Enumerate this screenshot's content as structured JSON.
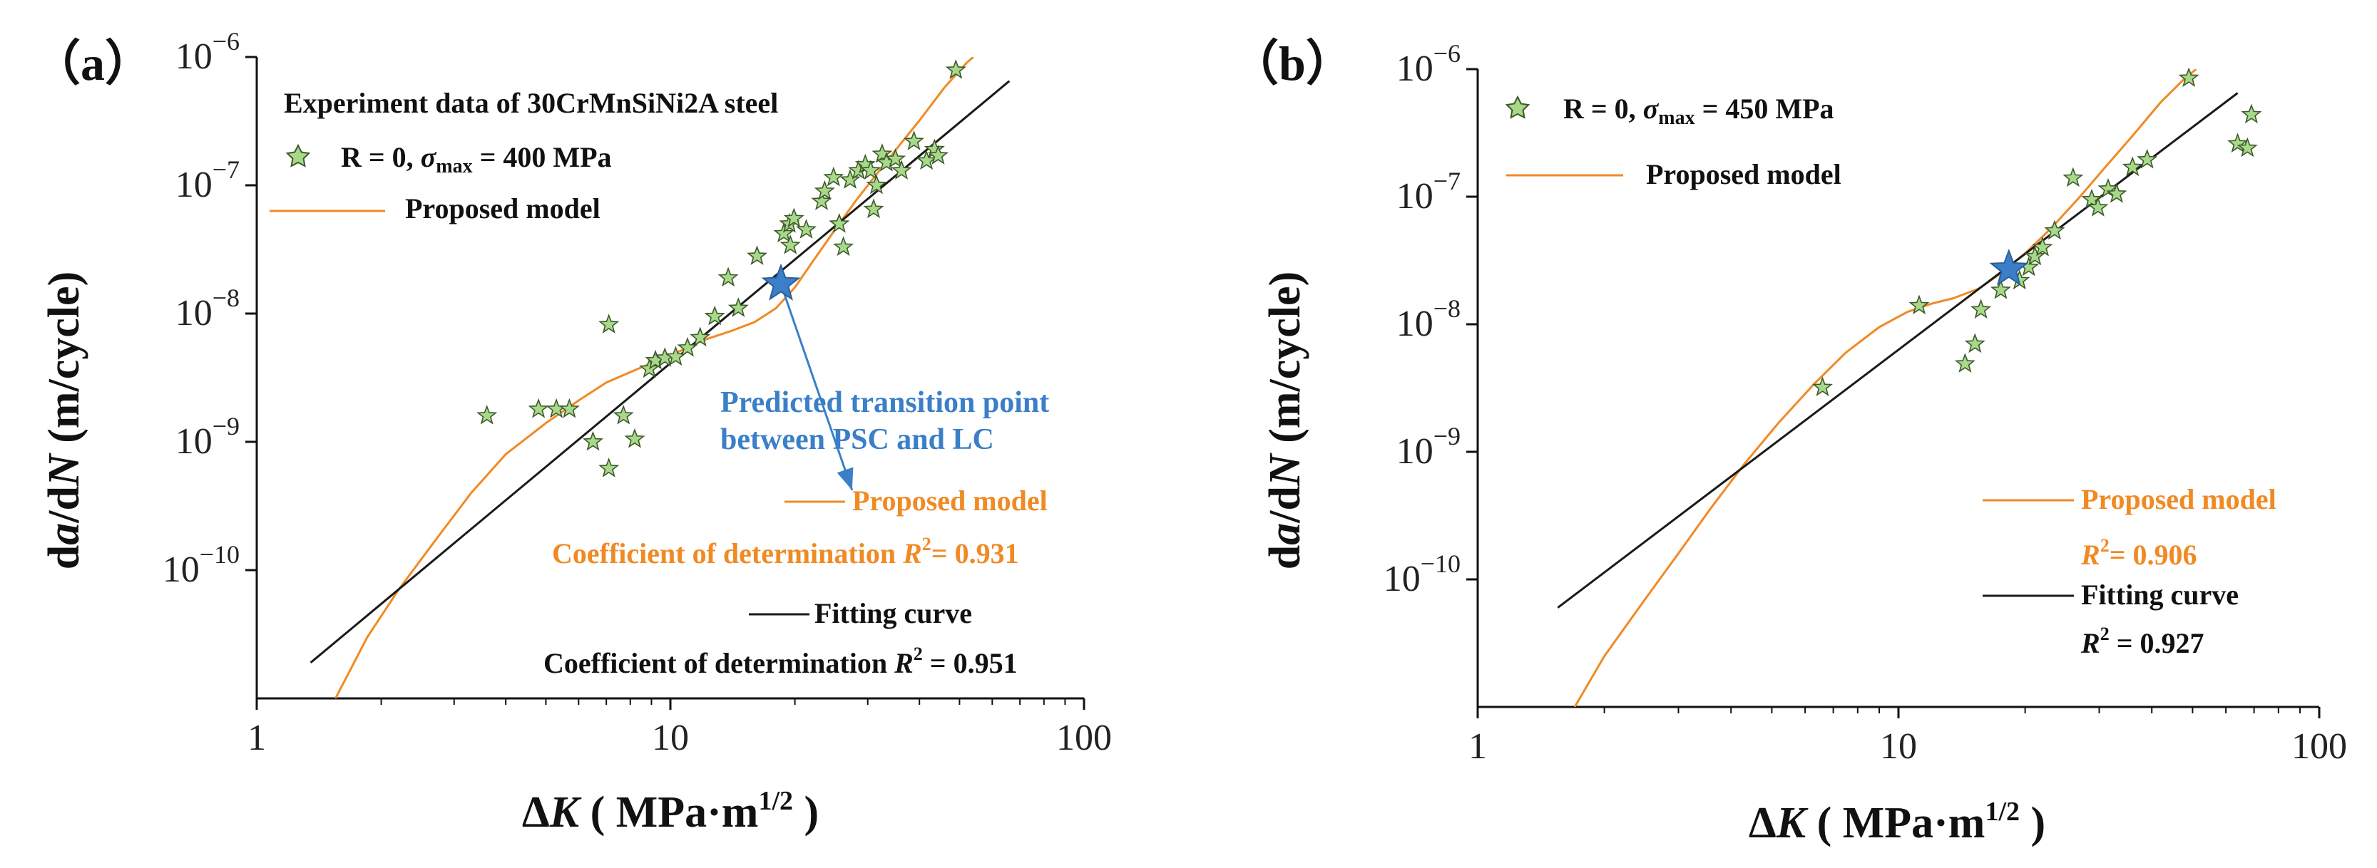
{
  "chart_data": [
    {
      "id": "a",
      "type": "scatter",
      "panel_label": "（a）",
      "xlabel": "ΔK ( MPa·m1/2 )",
      "xlabel_parts": {
        "delta": "Δ",
        "var": "K",
        "units": " ( MPa·m",
        "sup": "1/2",
        "close": " )"
      },
      "ylabel": "da/dN (m/cycle)",
      "ylabel_parts": {
        "d1": "d",
        "a": "a",
        "slash": "/d",
        "n": "N",
        "units": " (m/cycle)"
      },
      "xscale": "log",
      "yscale": "log",
      "xlim": [
        1,
        100
      ],
      "ylim": [
        1e-11,
        1e-06
      ],
      "xticks": [
        1,
        10,
        100
      ],
      "xtick_labels": [
        "1",
        "10",
        "100"
      ],
      "yticks": [
        1e-10,
        1e-09,
        1e-08,
        1e-07,
        1e-06
      ],
      "ytick_labels": [
        {
          "base": "10",
          "exp": "−10"
        },
        {
          "base": "10",
          "exp": "−9"
        },
        {
          "base": "10",
          "exp": "−8"
        },
        {
          "base": "10",
          "exp": "−7"
        },
        {
          "base": "10",
          "exp": "−6"
        }
      ],
      "title_annotation": "Experiment data of 30CrMnSiNi2A steel",
      "legend": [
        {
          "kind": "marker",
          "label_parts": {
            "pre": "R = 0, ",
            "sigma": "σ",
            "sub": "max",
            "post": " = 400 MPa"
          }
        },
        {
          "kind": "line",
          "color": "#f08a24",
          "label": "Proposed model"
        }
      ],
      "series": [
        {
          "name": "Experiment data",
          "kind": "points",
          "marker": "star",
          "color": "#a8d88a",
          "points": [
            [
              3.6,
              1.6e-09
            ],
            [
              4.8,
              1.8e-09
            ],
            [
              5.3,
              1.8e-09
            ],
            [
              5.7,
              1.8e-09
            ],
            [
              6.5,
              1e-09
            ],
            [
              7.1,
              8.2e-09
            ],
            [
              7.1,
              6.2e-10
            ],
            [
              7.7,
              1.6e-09
            ],
            [
              8.2,
              1.05e-09
            ],
            [
              8.9,
              3.7e-09
            ],
            [
              9.2,
              4.3e-09
            ],
            [
              9.7,
              4.5e-09
            ],
            [
              10.3,
              4.6e-09
            ],
            [
              11.0,
              5.4e-09
            ],
            [
              11.8,
              6.5e-09
            ],
            [
              12.8,
              9.5e-09
            ],
            [
              13.8,
              1.9e-08
            ],
            [
              14.6,
              1.1e-08
            ],
            [
              16.2,
              2.8e-08
            ],
            [
              18.8,
              4.2e-08
            ],
            [
              19.4,
              5e-08
            ],
            [
              19.9,
              5.5e-08
            ],
            [
              19.5,
              3.4e-08
            ],
            [
              21.3,
              4.5e-08
            ],
            [
              23.2,
              7.5e-08
            ],
            [
              23.6,
              9e-08
            ],
            [
              24.8,
              1.15e-07
            ],
            [
              25.6,
              5e-08
            ],
            [
              26.2,
              3.3e-08
            ],
            [
              27.2,
              1.1e-07
            ],
            [
              28.5,
              1.3e-07
            ],
            [
              29.6,
              1.45e-07
            ],
            [
              30.5,
              1.3e-07
            ],
            [
              31.5,
              1e-07
            ],
            [
              31.0,
              6.5e-08
            ],
            [
              32.5,
              1.75e-07
            ],
            [
              33.3,
              1.5e-07
            ],
            [
              35.0,
              1.6e-07
            ],
            [
              36.2,
              1.3e-07
            ],
            [
              38.8,
              2.2e-07
            ],
            [
              41.6,
              1.55e-07
            ],
            [
              43.5,
              1.9e-07
            ],
            [
              44.4,
              1.7e-07
            ],
            [
              49.0,
              7.9e-07
            ]
          ]
        },
        {
          "name": "Predicted transition point",
          "kind": "points",
          "marker": "big-star",
          "color": "#3a7fc8",
          "points": [
            [
              18.5,
              1.7e-08
            ]
          ]
        },
        {
          "name": "Proposed model",
          "kind": "line",
          "color": "#f08a24",
          "points": [
            [
              1.55,
              1e-11
            ],
            [
              1.85,
              3e-11
            ],
            [
              2.2,
              7e-11
            ],
            [
              2.7,
              1.7e-10
            ],
            [
              3.3,
              4e-10
            ],
            [
              4.0,
              8e-10
            ],
            [
              5.0,
              1.4e-09
            ],
            [
              6.0,
              2.1e-09
            ],
            [
              7.0,
              2.9e-09
            ],
            [
              8.5,
              3.8e-09
            ],
            [
              10.0,
              4.7e-09
            ],
            [
              12.0,
              6.2e-09
            ],
            [
              14.0,
              7.3e-09
            ],
            [
              16.0,
              8.6e-09
            ],
            [
              18.0,
              1.1e-08
            ],
            [
              20.0,
              1.6e-08
            ],
            [
              22.0,
              2.5e-08
            ],
            [
              25.0,
              4.5e-08
            ],
            [
              28.0,
              7.5e-08
            ],
            [
              32.0,
              1.3e-07
            ],
            [
              36.0,
              2.1e-07
            ],
            [
              40.0,
              3.2e-07
            ],
            [
              46.0,
              5.8e-07
            ],
            [
              52.0,
              9e-07
            ],
            [
              54.0,
              1e-06
            ]
          ]
        },
        {
          "name": "Fitting curve",
          "kind": "line",
          "color": "#1a1a1a",
          "points": [
            [
              1.35,
              1.9e-11
            ],
            [
              66.0,
              6.5e-07
            ]
          ]
        }
      ],
      "annotations": {
        "transition_text": [
          "Predicted transition point",
          "between PSC and LC"
        ],
        "arrow_from": [
          18.5,
          1.7e-08
        ],
        "arrow_to": [
          27.5,
          4.2e-10
        ],
        "proposed_label": "Proposed model",
        "proposed_r2_prefix": "Coefficient of determination ",
        "proposed_r2_value": "= 0.931",
        "fitting_label": "Fitting curve",
        "fitting_r2_prefix": "Coefficient of determination ",
        "fitting_r2_value": " = 0.951",
        "r2_symbol": "R",
        "r2_sup": "2"
      }
    },
    {
      "id": "b",
      "type": "scatter",
      "panel_label": "（b）",
      "xlabel": "ΔK ( MPa·m1/2 )",
      "xlabel_parts": {
        "delta": "Δ",
        "var": "K",
        "units": " ( MPa·m",
        "sup": "1/2",
        "close": " )"
      },
      "ylabel": "da/dN (m/cycle)",
      "ylabel_parts": {
        "d1": "d",
        "a": "a",
        "slash": "/d",
        "n": "N",
        "units": " (m/cycle)"
      },
      "xscale": "log",
      "yscale": "log",
      "xlim": [
        1,
        100
      ],
      "ylim": [
        1e-11,
        1e-06
      ],
      "xticks": [
        1,
        10,
        100
      ],
      "xtick_labels": [
        "1",
        "10",
        "100"
      ],
      "yticks": [
        1e-10,
        1e-09,
        1e-08,
        1e-07,
        1e-06
      ],
      "ytick_labels": [
        {
          "base": "10",
          "exp": "−10"
        },
        {
          "base": "10",
          "exp": "−9"
        },
        {
          "base": "10",
          "exp": "−8"
        },
        {
          "base": "10",
          "exp": "−7"
        },
        {
          "base": "10",
          "exp": "−6"
        }
      ],
      "legend": [
        {
          "kind": "marker",
          "label_parts": {
            "pre": "R = 0, ",
            "sigma": "σ",
            "sub": "max",
            "post": " = 450 MPa"
          }
        },
        {
          "kind": "line",
          "color": "#f08a24",
          "label": "Proposed model"
        }
      ],
      "series": [
        {
          "name": "Experiment data",
          "kind": "points",
          "marker": "star",
          "color": "#a8d88a",
          "points": [
            [
              6.6,
              3.2e-09
            ],
            [
              11.2,
              1.4e-08
            ],
            [
              14.4,
              4.9e-09
            ],
            [
              15.2,
              7e-09
            ],
            [
              15.7,
              1.3e-08
            ],
            [
              17.5,
              1.85e-08
            ],
            [
              19.4,
              2.2e-08
            ],
            [
              20.4,
              2.8e-08
            ],
            [
              21.1,
              3.4e-08
            ],
            [
              22.0,
              4e-08
            ],
            [
              23.5,
              5.4e-08
            ],
            [
              26.0,
              1.4e-07
            ],
            [
              28.8,
              9.5e-08
            ],
            [
              29.8,
              8.2e-08
            ],
            [
              31.5,
              1.15e-07
            ],
            [
              33.0,
              1.05e-07
            ],
            [
              36.0,
              1.7e-07
            ],
            [
              39.0,
              1.95e-07
            ],
            [
              49.0,
              8.5e-07
            ],
            [
              64.0,
              2.6e-07
            ],
            [
              67.5,
              2.4e-07
            ],
            [
              69.0,
              4.4e-07
            ]
          ]
        },
        {
          "name": "Predicted transition point",
          "kind": "points",
          "marker": "big-star",
          "color": "#3a7fc8",
          "points": [
            [
              18.3,
              2.7e-08
            ]
          ]
        },
        {
          "name": "Proposed model",
          "kind": "line",
          "color": "#f08a24",
          "points": [
            [
              1.7,
              1e-11
            ],
            [
              2.0,
              2.5e-11
            ],
            [
              2.5,
              7e-11
            ],
            [
              3.0,
              1.6e-10
            ],
            [
              3.6,
              3.7e-10
            ],
            [
              4.3,
              8e-10
            ],
            [
              5.2,
              1.7e-09
            ],
            [
              6.3,
              3.4e-09
            ],
            [
              7.5,
              6e-09
            ],
            [
              9.0,
              9.5e-09
            ],
            [
              10.5,
              1.25e-08
            ],
            [
              12.0,
              1.45e-08
            ],
            [
              13.5,
              1.6e-08
            ],
            [
              15.5,
              1.9e-08
            ],
            [
              17.5,
              2.5e-08
            ],
            [
              20.0,
              3.6e-08
            ],
            [
              23.0,
              5.6e-08
            ],
            [
              27.0,
              1e-07
            ],
            [
              31.0,
              1.7e-07
            ],
            [
              36.0,
              3e-07
            ],
            [
              42.0,
              5.5e-07
            ],
            [
              48.0,
              8.5e-07
            ],
            [
              51.0,
              1e-06
            ]
          ]
        },
        {
          "name": "Fitting curve",
          "kind": "line",
          "color": "#1a1a1a",
          "points": [
            [
              1.55,
              6e-11
            ],
            [
              64.0,
              6.5e-07
            ]
          ]
        }
      ],
      "annotations": {
        "proposed_label": "Proposed model",
        "proposed_r2_value": "= 0.906",
        "fitting_label": "Fitting curve",
        "fitting_r2_value": " = 0.927",
        "r2_symbol": "R",
        "r2_sup": "2"
      }
    }
  ]
}
